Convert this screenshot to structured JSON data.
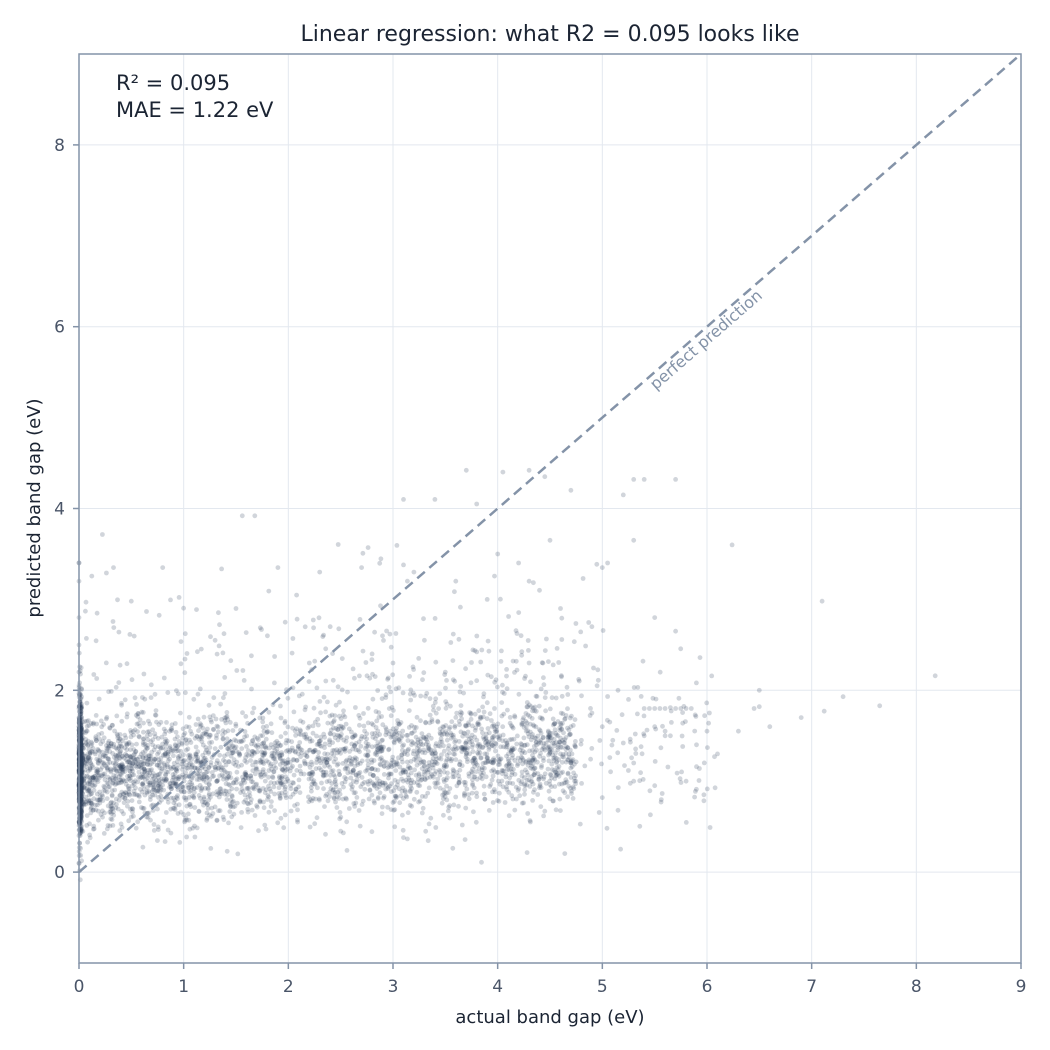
{
  "chart_data": {
    "type": "scatter",
    "title": "Linear regression: what R2 = 0.095 looks like",
    "xlabel": "actual band gap (eV)",
    "ylabel": "predicted band gap (eV)",
    "xlim": [
      0,
      9
    ],
    "ylim": [
      -1,
      9
    ],
    "xticks": [
      "0",
      "1",
      "2",
      "3",
      "4",
      "5",
      "6",
      "7",
      "8",
      "9"
    ],
    "yticks": [
      "0",
      "2",
      "4",
      "6",
      "8"
    ],
    "grid": true,
    "annotations": [
      "R² = 0.095",
      "MAE = 1.22 eV"
    ],
    "reference_line": {
      "label": "perfect prediction",
      "from": [
        0,
        0
      ],
      "to": [
        9,
        9
      ],
      "style": "dashed"
    },
    "colors": {
      "points": "#2c3e5a",
      "reference": "#8493a8",
      "grid": "#e3e8ef",
      "frame": "#8493a8"
    },
    "series": [
      {
        "points": [
          [
            0.0,
            0.4
          ],
          [
            0.0,
            0.55
          ],
          [
            0.0,
            0.8
          ],
          [
            0.0,
            1.0
          ],
          [
            0.0,
            1.2
          ],
          [
            0.0,
            1.4
          ],
          [
            0.0,
            1.6
          ],
          [
            0.0,
            1.8
          ],
          [
            0.0,
            2.0
          ],
          [
            0.0,
            2.2
          ],
          [
            0.0,
            2.5
          ],
          [
            0.0,
            2.8
          ],
          [
            0.0,
            3.2
          ],
          [
            0.0,
            3.4
          ],
          [
            0.0,
            0.1
          ],
          [
            0.0,
            0.95
          ],
          [
            0.0,
            1.1
          ],
          [
            0.0,
            1.3
          ],
          [
            0.0,
            1.5
          ],
          [
            0.0,
            1.7
          ],
          [
            1.56,
            3.92
          ],
          [
            1.68,
            3.92
          ],
          [
            0.33,
            3.35
          ],
          [
            0.8,
            3.35
          ],
          [
            1.9,
            3.35
          ],
          [
            2.3,
            3.3
          ],
          [
            2.7,
            3.35
          ],
          [
            3.1,
            3.38
          ],
          [
            3.2,
            3.3
          ],
          [
            3.6,
            3.2
          ],
          [
            3.7,
            4.42
          ],
          [
            4.05,
            4.4
          ],
          [
            4.3,
            4.42
          ],
          [
            4.45,
            4.35
          ],
          [
            4.7,
            4.2
          ],
          [
            5.2,
            4.15
          ],
          [
            5.3,
            4.32
          ],
          [
            5.4,
            4.32
          ],
          [
            5.7,
            4.32
          ],
          [
            3.1,
            4.1
          ],
          [
            3.4,
            4.1
          ],
          [
            3.8,
            4.05
          ],
          [
            4.5,
            3.65
          ],
          [
            5.3,
            3.65
          ],
          [
            6.24,
            3.6
          ],
          [
            7.1,
            2.98
          ],
          [
            0.5,
            2.98
          ],
          [
            1.5,
            2.9
          ],
          [
            4.2,
            3.4
          ],
          [
            4.3,
            3.2
          ],
          [
            4.4,
            3.1
          ],
          [
            3.9,
            3.0
          ],
          [
            4.0,
            3.5
          ],
          [
            4.6,
            2.9
          ],
          [
            5.0,
            3.35
          ],
          [
            5.05,
            3.4
          ],
          [
            4.9,
            2.7
          ],
          [
            5.5,
            2.8
          ],
          [
            5.7,
            2.65
          ],
          [
            3.3,
            2.55
          ],
          [
            2.9,
            2.6
          ],
          [
            2.4,
            2.7
          ],
          [
            1.8,
            2.6
          ],
          [
            1.3,
            2.55
          ],
          [
            2.8,
            2.4
          ],
          [
            2.2,
            2.3
          ],
          [
            3.0,
            2.3
          ],
          [
            3.5,
            2.2
          ],
          [
            4.3,
            2.3
          ],
          [
            5.4,
            1.8
          ],
          [
            5.45,
            1.8
          ],
          [
            5.5,
            1.8
          ],
          [
            5.55,
            1.8
          ],
          [
            5.6,
            1.8
          ],
          [
            5.65,
            1.81
          ],
          [
            5.7,
            1.8
          ],
          [
            5.75,
            1.8
          ],
          [
            5.8,
            1.8
          ],
          [
            5.85,
            1.8
          ],
          [
            5.4,
            1.5
          ],
          [
            5.5,
            1.6
          ],
          [
            5.6,
            1.55
          ],
          [
            5.6,
            1.5
          ],
          [
            5.65,
            1.5
          ],
          [
            5.9,
            1.4
          ],
          [
            6.0,
            1.55
          ],
          [
            6.1,
            1.3
          ],
          [
            6.3,
            1.55
          ],
          [
            6.45,
            1.8
          ],
          [
            6.5,
            1.82
          ],
          [
            6.5,
            2.0
          ],
          [
            6.9,
            1.7
          ],
          [
            7.12,
            1.77
          ],
          [
            7.3,
            1.93
          ],
          [
            7.65,
            1.83
          ],
          [
            8.18,
            2.16
          ],
          [
            6.6,
            1.6
          ],
          [
            5.97,
            0.85
          ],
          [
            5.15,
            0.68
          ],
          [
            5.0,
            0.82
          ],
          [
            4.45,
            0.67
          ],
          [
            3.1,
            0.38
          ],
          [
            2.5,
            0.45
          ],
          [
            5.3,
            1.2
          ],
          [
            5.1,
            1.45
          ],
          [
            5.0,
            1.6
          ],
          [
            4.9,
            1.75
          ],
          [
            4.8,
            1.45
          ],
          [
            4.95,
            2.05
          ],
          [
            5.15,
            2.0
          ],
          [
            5.25,
            1.9
          ],
          [
            5.3,
            1.0
          ],
          [
            5.5,
            0.95
          ],
          [
            5.8,
            1.0
          ],
          [
            4.7,
            1.6
          ],
          [
            4.6,
            1.3
          ],
          [
            4.55,
            1.1
          ],
          [
            4.7,
            1.2
          ]
        ]
      }
    ]
  }
}
